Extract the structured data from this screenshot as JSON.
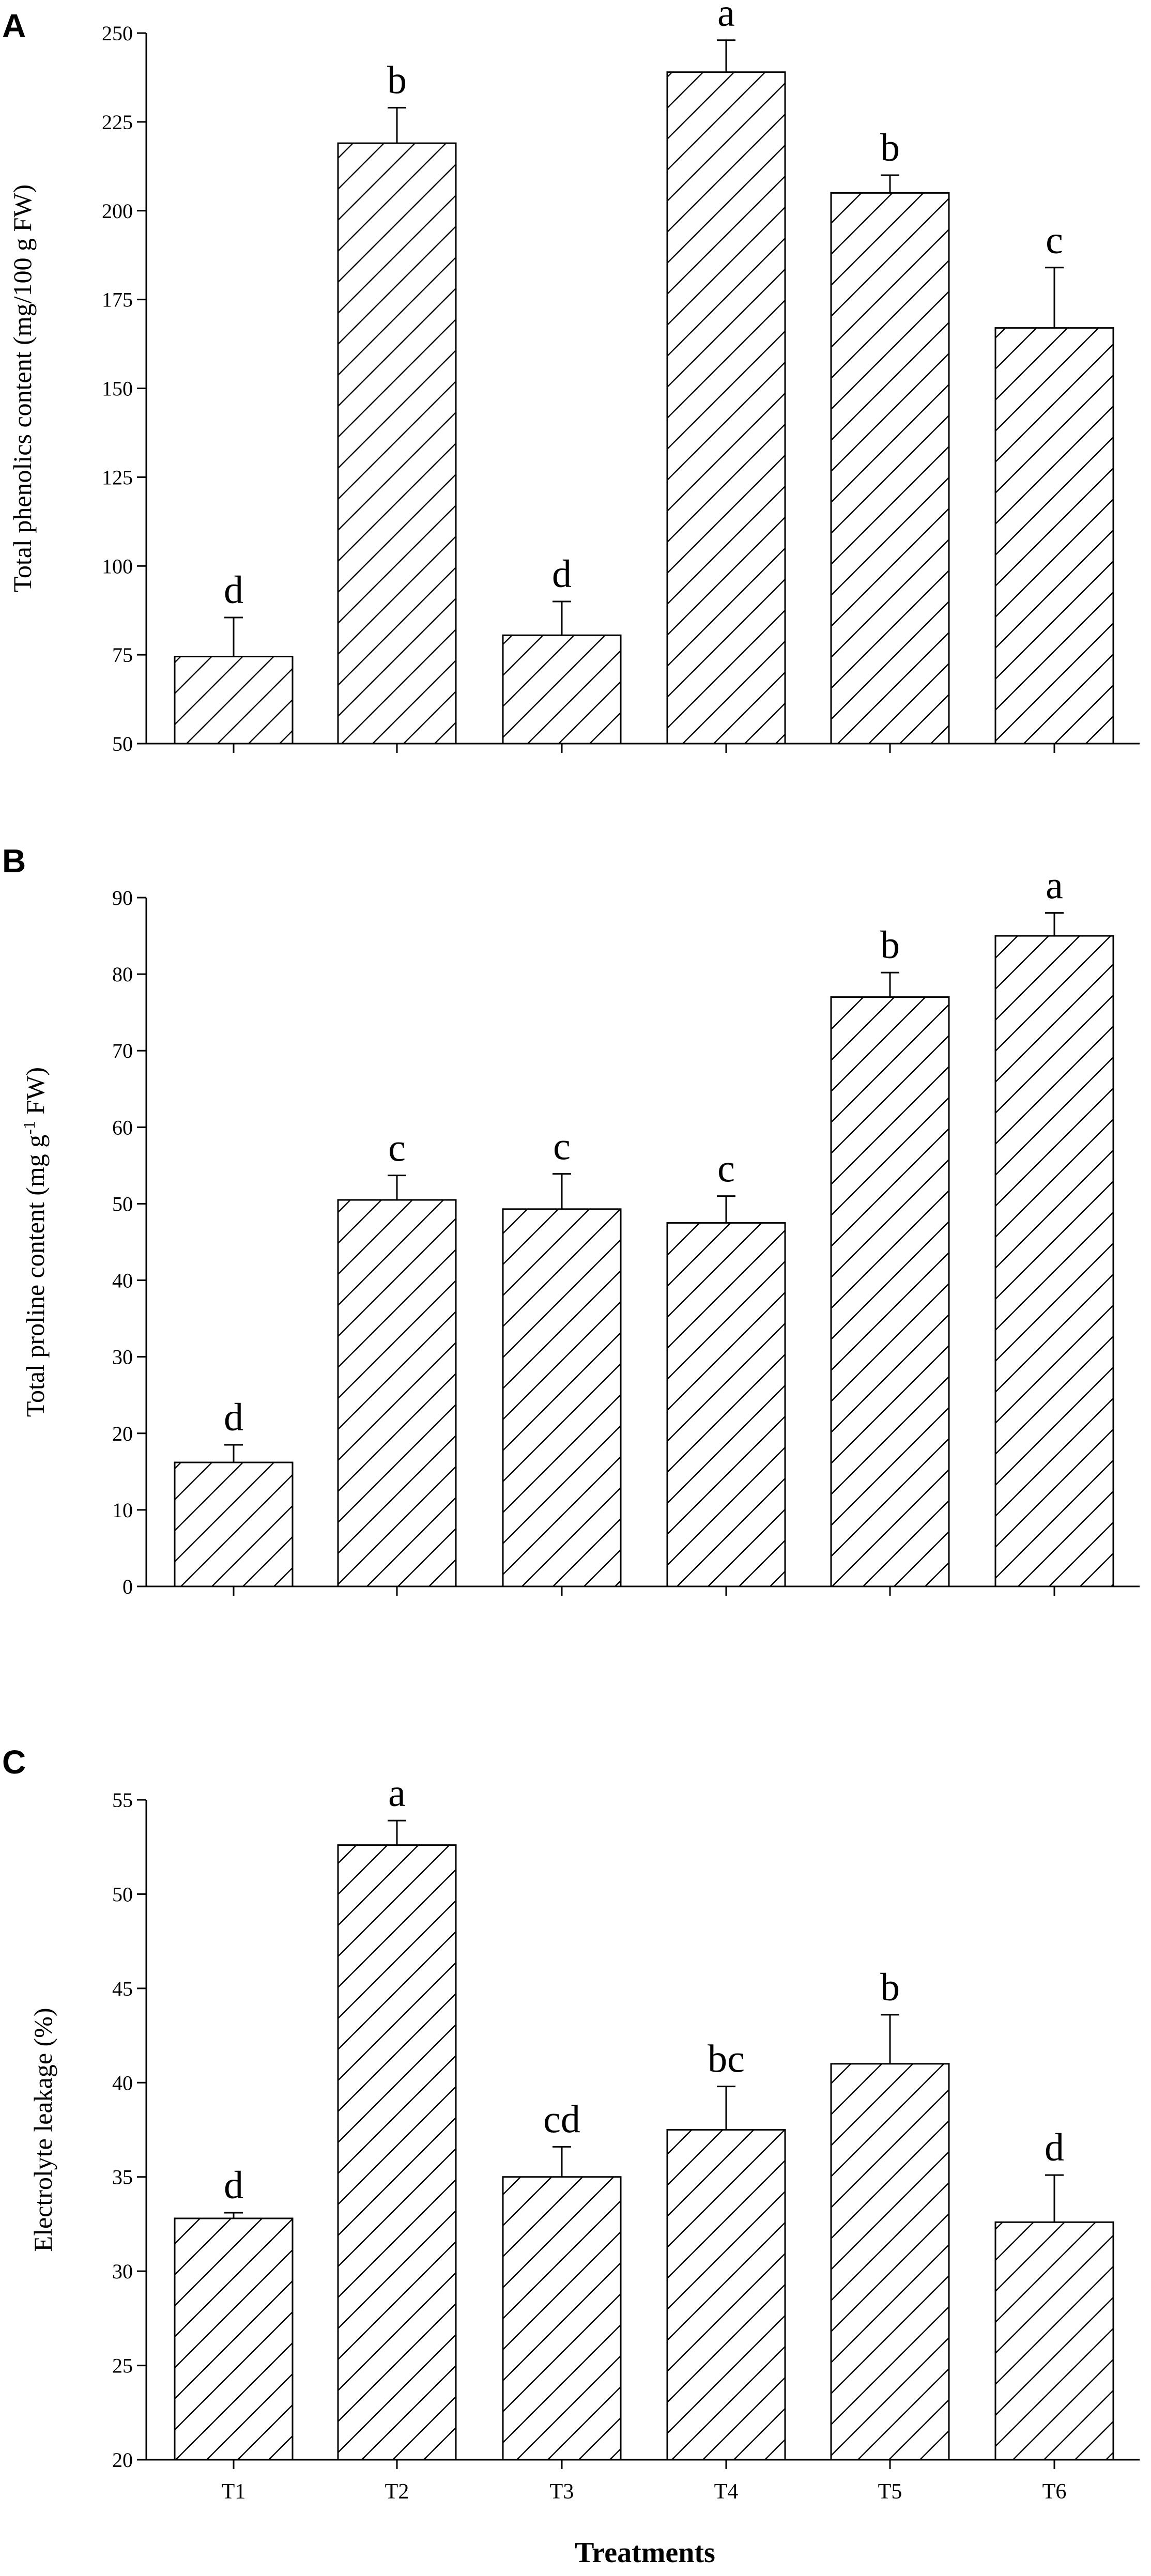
{
  "colors": {
    "bar_fill": "#ffffff",
    "bar_stroke": "#000000",
    "hatch": "#000000",
    "error_bar": "#000000"
  },
  "x_axis_title": "Treatments",
  "chart_data": [
    {
      "panel": "A",
      "type": "bar",
      "categories": [
        "T1",
        "T2",
        "T3",
        "T4",
        "T5",
        "T6"
      ],
      "values": [
        74.5,
        219,
        80.5,
        239,
        205,
        167
      ],
      "errors": [
        11,
        10,
        9.5,
        9,
        5,
        17
      ],
      "significance": [
        "d",
        "b",
        "d",
        "a",
        "b",
        "c"
      ],
      "ylabel": "Total phenolics content (mg/100 g FW)",
      "ylim": [
        50,
        250
      ],
      "yticks": [
        50,
        75,
        100,
        125,
        150,
        175,
        200,
        225,
        250
      ],
      "show_category_labels": false,
      "grid": false
    },
    {
      "panel": "B",
      "type": "bar",
      "categories": [
        "T1",
        "T2",
        "T3",
        "T4",
        "T5",
        "T6"
      ],
      "values": [
        16.2,
        50.5,
        49.3,
        47.5,
        77,
        85
      ],
      "errors": [
        2.3,
        3.2,
        4.6,
        3.5,
        3.2,
        3
      ],
      "significance": [
        "d",
        "c",
        "c",
        "c",
        "b",
        "a"
      ],
      "ylabel_parts": [
        "Total proline content (mg g",
        "-1",
        " FW)"
      ],
      "ylim": [
        0,
        90
      ],
      "yticks": [
        0,
        10,
        20,
        30,
        40,
        50,
        60,
        70,
        80,
        90
      ],
      "show_category_labels": false,
      "grid": false
    },
    {
      "panel": "C",
      "type": "bar",
      "categories": [
        "T1",
        "T2",
        "T3",
        "T4",
        "T5",
        "T6"
      ],
      "values": [
        32.8,
        52.6,
        35,
        37.5,
        41,
        32.6
      ],
      "errors": [
        0.3,
        1.3,
        1.6,
        2.3,
        2.6,
        2.5
      ],
      "significance": [
        "d",
        "a",
        "cd",
        "bc",
        "b",
        "d"
      ],
      "ylabel": "Electrolyte leakage (%)",
      "ylim": [
        20,
        55
      ],
      "yticks": [
        20,
        25,
        30,
        35,
        40,
        45,
        50,
        55
      ],
      "show_category_labels": true,
      "grid": false
    }
  ]
}
